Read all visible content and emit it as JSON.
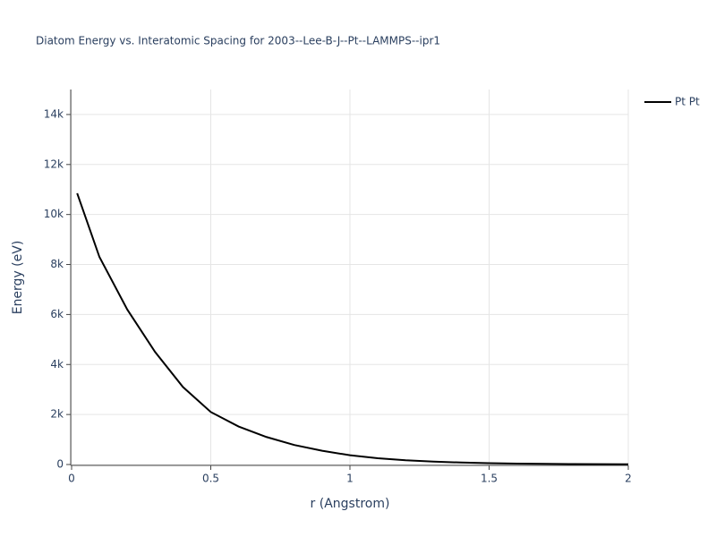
{
  "chart_data": {
    "type": "line",
    "title": "Diatom Energy vs. Interatomic Spacing for 2003--Lee-B-J--Pt--LAMMPS--ipr1",
    "x_label": "r (Angstrom)",
    "y_label": "Energy (eV)",
    "x": [
      0.02,
      0.1,
      0.2,
      0.3,
      0.4,
      0.5,
      0.6,
      0.7,
      0.8,
      0.9,
      1.0,
      1.1,
      1.2,
      1.3,
      1.4,
      1.5,
      1.6,
      1.7,
      1.8,
      1.9,
      2.0
    ],
    "series": [
      {
        "name": "Pt Pt",
        "color": "#000000",
        "values": [
          10850,
          8300,
          6200,
          4500,
          3100,
          2100,
          1520,
          1100,
          780,
          550,
          370,
          250,
          170,
          115,
          80,
          55,
          38,
          26,
          18,
          12,
          8
        ]
      }
    ],
    "xlim": [
      0,
      2
    ],
    "xticks": [
      0,
      0.5,
      1,
      1.5,
      2
    ],
    "ylim": [
      0,
      15000
    ],
    "yticks": [
      0,
      {
        "value": 2000,
        "label": "2k"
      },
      {
        "value": 4000,
        "label": "4k"
      },
      {
        "value": 6000,
        "label": "6k"
      },
      {
        "value": 8000,
        "label": "8k"
      },
      {
        "value": 10000,
        "label": "10k"
      },
      {
        "value": 12000,
        "label": "12k"
      },
      {
        "value": 14000,
        "label": "14k"
      }
    ],
    "grid": true,
    "legend": "top-right"
  }
}
